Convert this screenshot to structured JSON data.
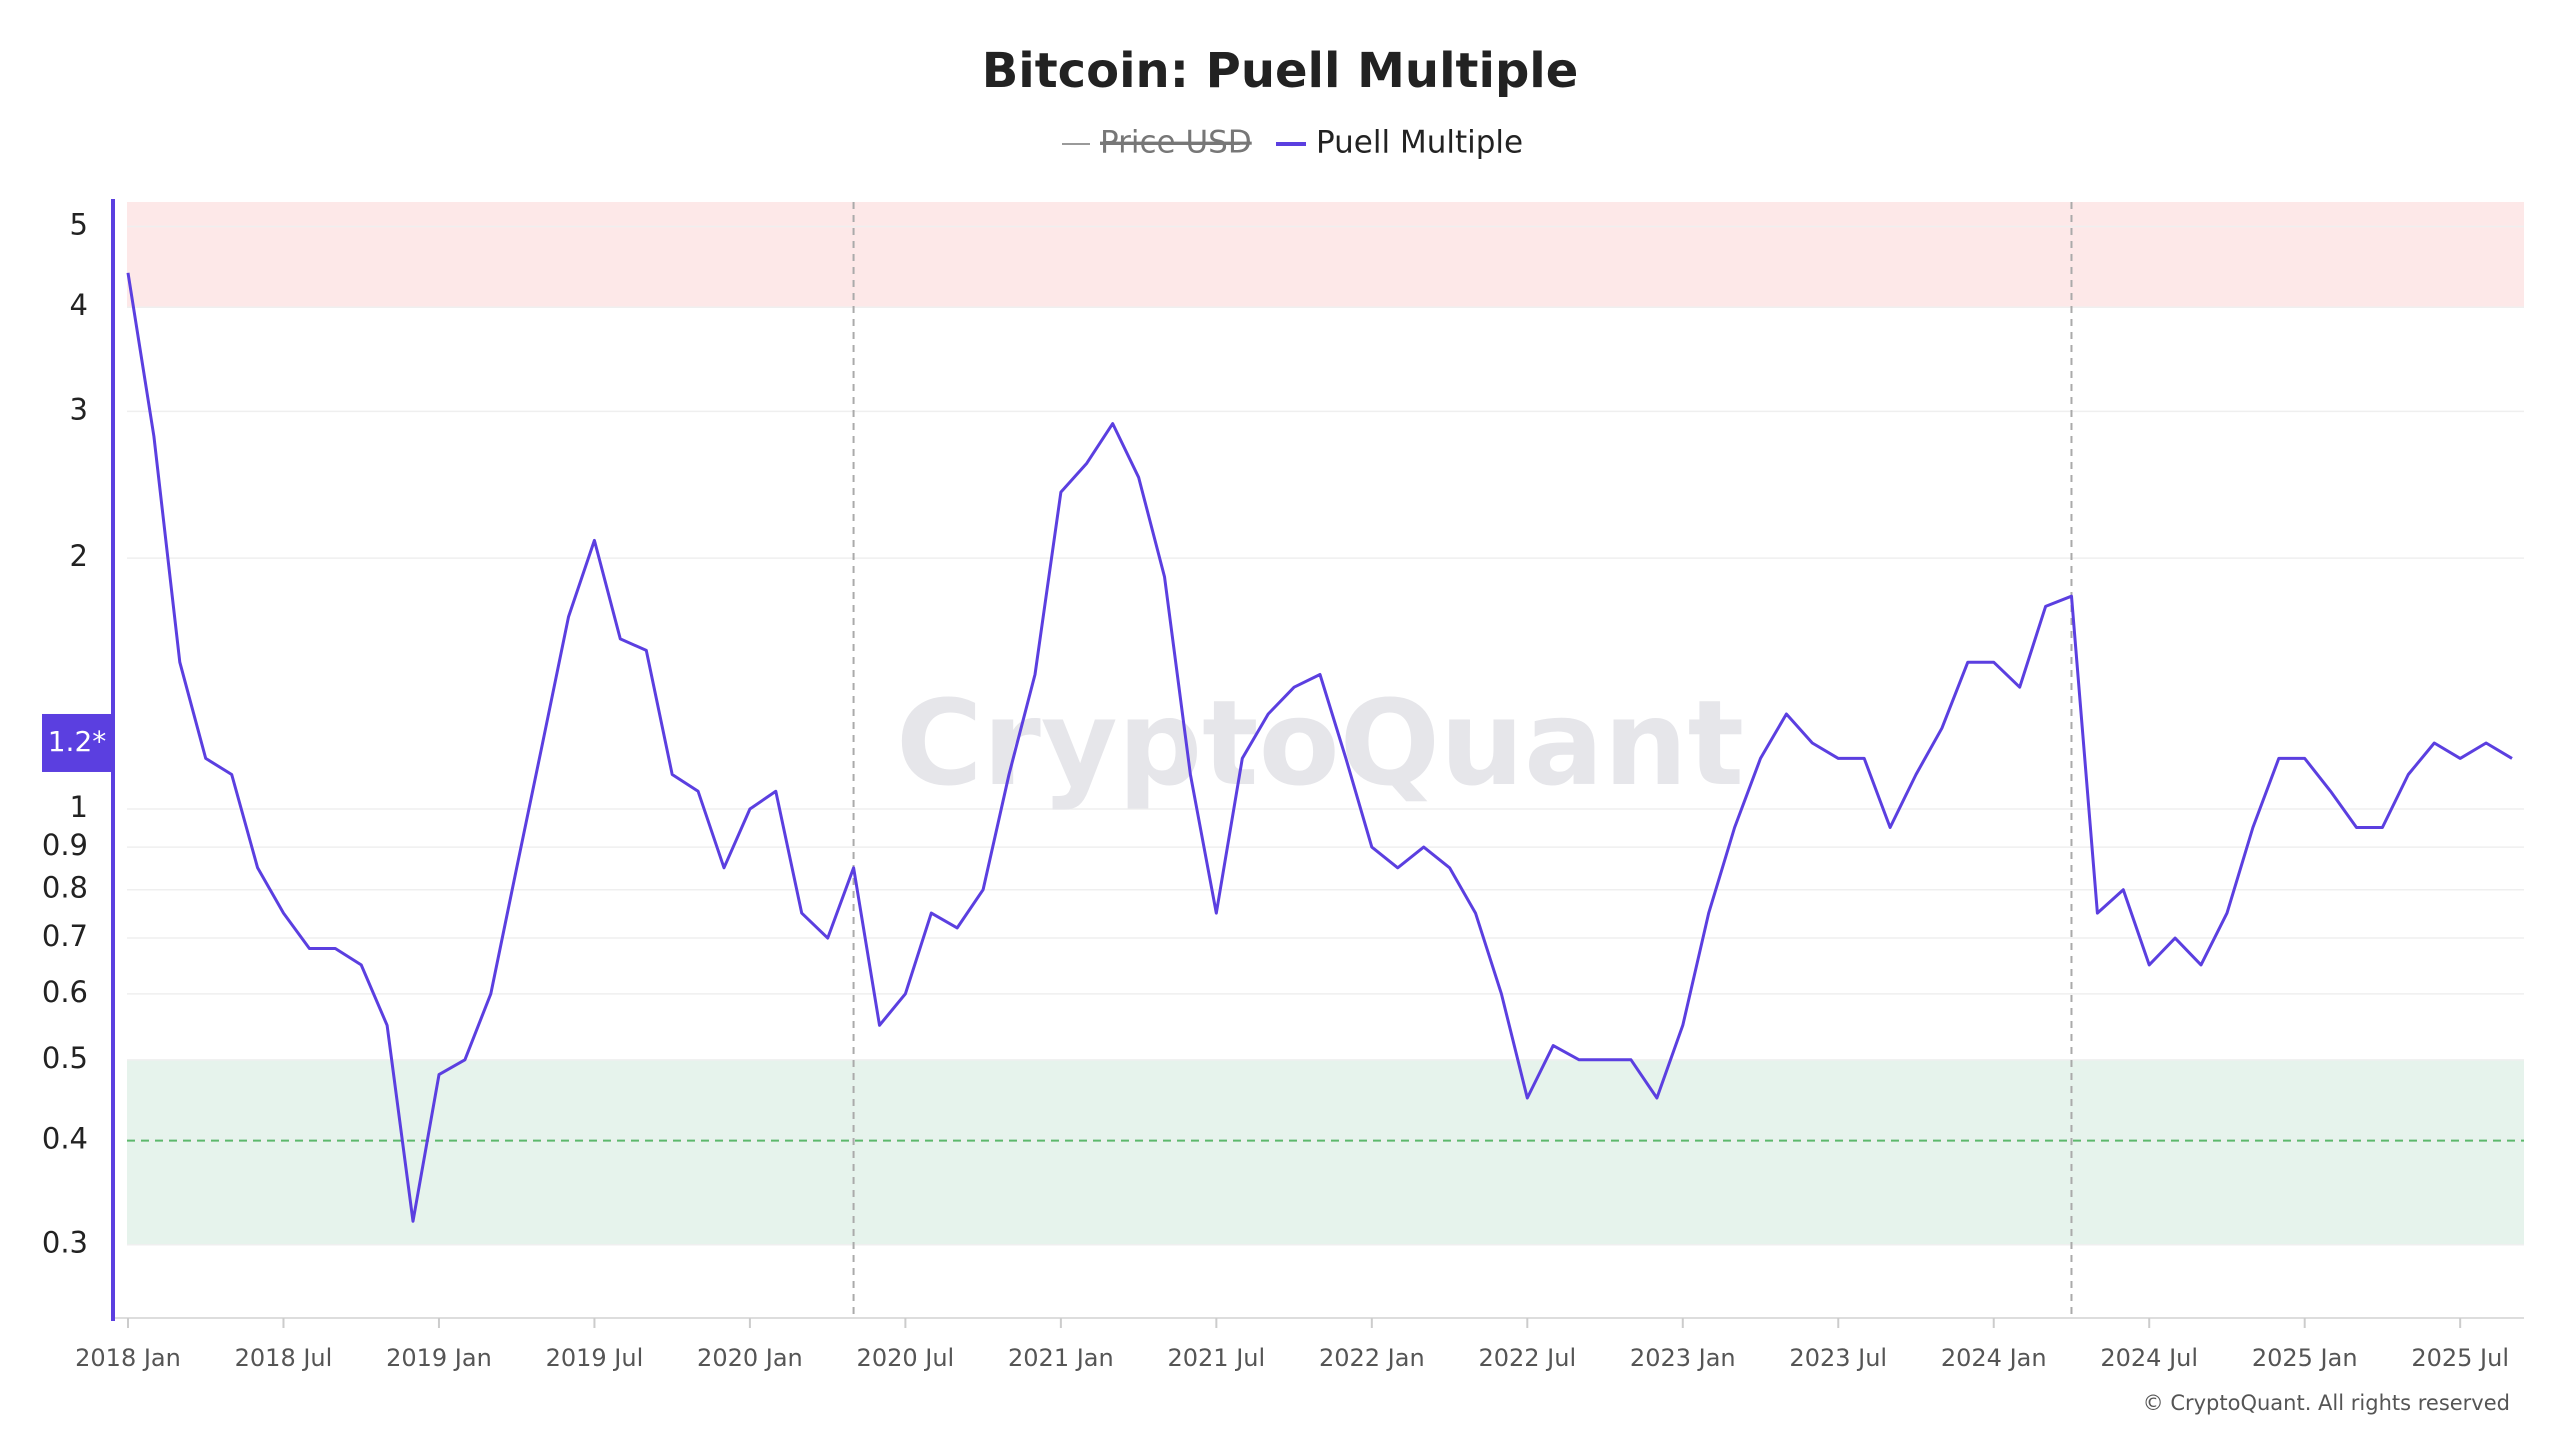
{
  "chart_data": {
    "type": "line",
    "title": "Bitcoin: Puell Multiple",
    "log_y": true,
    "grid": true,
    "watermark": "CryptoQuant",
    "footer": "© CryptoQuant. All rights reserved",
    "hidden_series": [
      {
        "name": "Price USD",
        "color": "#9a9a9a"
      }
    ],
    "x": [
      "2018-01",
      "2018-02",
      "2018-03",
      "2018-04",
      "2018-05",
      "2018-06",
      "2018-07",
      "2018-08",
      "2018-09",
      "2018-10",
      "2018-11",
      "2018-12",
      "2019-01",
      "2019-02",
      "2019-03",
      "2019-04",
      "2019-05",
      "2019-06",
      "2019-07",
      "2019-08",
      "2019-09",
      "2019-10",
      "2019-11",
      "2019-12",
      "2020-01",
      "2020-02",
      "2020-03",
      "2020-04",
      "2020-05",
      "2020-06",
      "2020-07",
      "2020-08",
      "2020-09",
      "2020-10",
      "2020-11",
      "2020-12",
      "2021-01",
      "2021-02",
      "2021-03",
      "2021-04",
      "2021-05",
      "2021-06",
      "2021-07",
      "2021-08",
      "2021-09",
      "2021-10",
      "2021-11",
      "2021-12",
      "2022-01",
      "2022-02",
      "2022-03",
      "2022-04",
      "2022-05",
      "2022-06",
      "2022-07",
      "2022-08",
      "2022-09",
      "2022-10",
      "2022-11",
      "2022-12",
      "2023-01",
      "2023-02",
      "2023-03",
      "2023-04",
      "2023-05",
      "2023-06",
      "2023-07",
      "2023-08",
      "2023-09",
      "2023-10",
      "2023-11",
      "2023-12",
      "2024-01",
      "2024-02",
      "2024-03",
      "2024-04",
      "2024-05",
      "2024-06",
      "2024-07",
      "2024-08",
      "2024-09",
      "2024-10",
      "2024-11",
      "2024-12",
      "2025-01",
      "2025-02",
      "2025-03",
      "2025-04",
      "2025-05",
      "2025-06",
      "2025-07",
      "2025-08",
      "2025-09"
    ],
    "series": [
      {
        "name": "Puell Multiple",
        "color": "#5b3fe0",
        "values": [
          4.4,
          2.8,
          1.5,
          1.15,
          1.1,
          0.85,
          0.75,
          0.68,
          0.68,
          0.65,
          0.55,
          0.32,
          0.48,
          0.5,
          0.6,
          0.85,
          1.2,
          1.7,
          2.1,
          1.6,
          1.55,
          1.1,
          1.05,
          0.85,
          1.0,
          1.05,
          0.75,
          0.7,
          0.85,
          0.55,
          0.6,
          0.75,
          0.72,
          0.8,
          1.1,
          1.45,
          2.4,
          2.6,
          2.9,
          2.5,
          1.9,
          1.1,
          0.75,
          1.15,
          1.3,
          1.4,
          1.45,
          1.15,
          0.9,
          0.85,
          0.9,
          0.85,
          0.75,
          0.6,
          0.45,
          0.52,
          0.5,
          0.5,
          0.5,
          0.45,
          0.55,
          0.75,
          0.95,
          1.15,
          1.3,
          1.2,
          1.15,
          1.15,
          0.95,
          1.1,
          1.25,
          1.5,
          1.5,
          1.4,
          1.75,
          1.8,
          0.75,
          0.8,
          0.65,
          0.7,
          0.65,
          0.75,
          0.95,
          1.15,
          1.15,
          1.05,
          0.95,
          0.95,
          1.1,
          1.2,
          1.15,
          1.2,
          1.15
        ]
      }
    ],
    "xlim": [
      "2018-01",
      "2025-09"
    ],
    "xticks": [
      {
        "value": "2018-01",
        "label": "2018 Jan"
      },
      {
        "value": "2018-07",
        "label": "2018 Jul"
      },
      {
        "value": "2019-01",
        "label": "2019 Jan"
      },
      {
        "value": "2019-07",
        "label": "2019 Jul"
      },
      {
        "value": "2020-01",
        "label": "2020 Jan"
      },
      {
        "value": "2020-07",
        "label": "2020 Jul"
      },
      {
        "value": "2021-01",
        "label": "2021 Jan"
      },
      {
        "value": "2021-07",
        "label": "2021 Jul"
      },
      {
        "value": "2022-01",
        "label": "2022 Jan"
      },
      {
        "value": "2022-07",
        "label": "2022 Jul"
      },
      {
        "value": "2023-01",
        "label": "2023 Jan"
      },
      {
        "value": "2023-07",
        "label": "2023 Jul"
      },
      {
        "value": "2024-01",
        "label": "2024 Jan"
      },
      {
        "value": "2024-07",
        "label": "2024 Jul"
      },
      {
        "value": "2025-01",
        "label": "2025 Jan"
      },
      {
        "value": "2025-07",
        "label": "2025 Jul"
      }
    ],
    "ylim": [
      0.245,
      5.35
    ],
    "yticks": [
      0.3,
      0.4,
      0.5,
      0.6,
      0.7,
      0.8,
      0.9,
      1,
      2,
      3,
      4,
      5
    ],
    "zones": [
      {
        "from": 4,
        "to": 5.35,
        "color": "#fde8e8"
      },
      {
        "from": 0.3,
        "to": 0.5,
        "color": "#e6f3ec"
      }
    ],
    "reference_line": {
      "value": 0.4,
      "color": "#5cb86c"
    },
    "halvings": [
      "2020-05",
      "2024-04"
    ],
    "current_marker": {
      "value": 1.2,
      "label": "1.2*"
    }
  }
}
